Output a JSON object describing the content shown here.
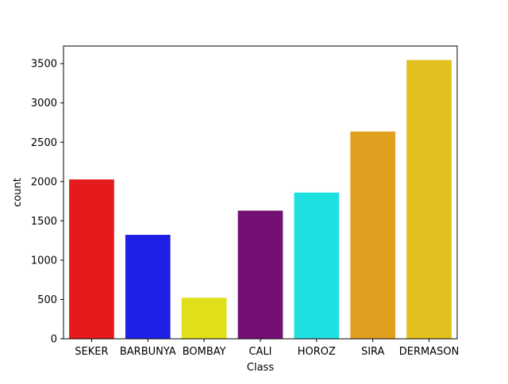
{
  "chart_data": {
    "type": "bar",
    "title": "",
    "xlabel": "Class",
    "ylabel": "count",
    "categories": [
      "SEKER",
      "BARBUNYA",
      "BOMBAY",
      "CALI",
      "HOROZ",
      "SIRA",
      "DERMASON"
    ],
    "values": [
      2027,
      1322,
      522,
      1630,
      1860,
      2636,
      3546
    ],
    "colors": [
      "#e41a1c",
      "#1f1fe6",
      "#e0e01a",
      "#740f74",
      "#1fe0e0",
      "#e09f1f",
      "#e0c01f"
    ],
    "ylim": [
      0,
      3724
    ],
    "yticks": [
      0,
      500,
      1000,
      1500,
      2000,
      2500,
      3000,
      3500
    ],
    "grid": false,
    "legend": "none"
  }
}
